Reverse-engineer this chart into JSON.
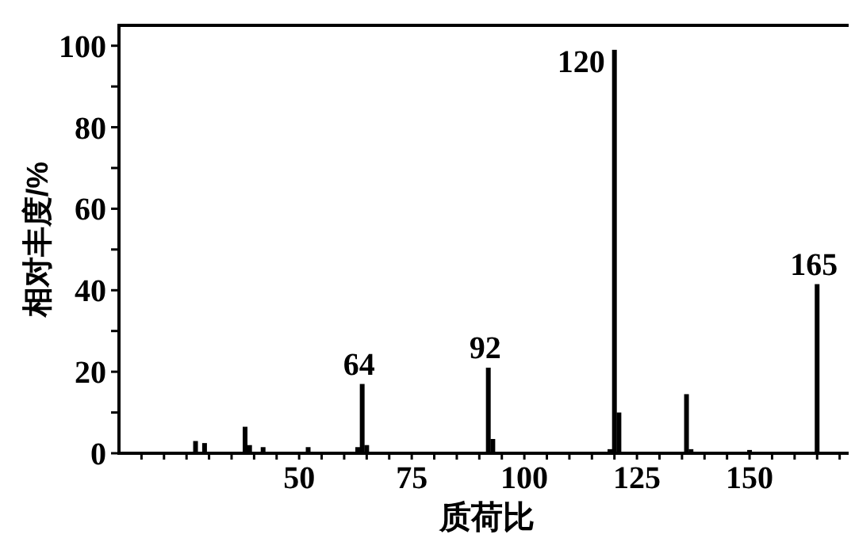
{
  "chart_data": {
    "type": "bar",
    "xlabel": "质荷比",
    "ylabel": "相对丰度/%",
    "x": [
      27,
      29,
      38,
      39,
      42,
      52,
      63,
      64,
      65,
      92,
      93,
      119,
      120,
      121,
      136,
      137,
      150,
      165
    ],
    "values": [
      3,
      2.5,
      6.5,
      2,
      1.5,
      1.5,
      1.5,
      17,
      2,
      21,
      3.5,
      1,
      99,
      10,
      14.5,
      1,
      0.8,
      41.5
    ],
    "color": "#000000",
    "xlim": [
      10,
      172
    ],
    "xticks": [
      {
        "value": 15,
        "label": null
      },
      {
        "value": 20,
        "label": null
      },
      {
        "value": 25,
        "label": null
      },
      {
        "value": 30,
        "label": null
      },
      {
        "value": 35,
        "label": null
      },
      {
        "value": 40,
        "label": null
      },
      {
        "value": 45,
        "label": null
      },
      50,
      {
        "value": 55,
        "label": null
      },
      {
        "value": 60,
        "label": null
      },
      {
        "value": 65,
        "label": null
      },
      {
        "value": 70,
        "label": null
      },
      75,
      {
        "value": 80,
        "label": null
      },
      {
        "value": 85,
        "label": null
      },
      {
        "value": 90,
        "label": null
      },
      {
        "value": 95,
        "label": null
      },
      100,
      {
        "value": 105,
        "label": null
      },
      {
        "value": 110,
        "label": null
      },
      {
        "value": 115,
        "label": null
      },
      {
        "value": 120,
        "label": null
      },
      125,
      {
        "value": 130,
        "label": null
      },
      {
        "value": 135,
        "label": null
      },
      {
        "value": 140,
        "label": null
      },
      {
        "value": 145,
        "label": null
      },
      150,
      {
        "value": 155,
        "label": null
      },
      {
        "value": 160,
        "label": null
      },
      {
        "value": 165,
        "label": null
      },
      {
        "value": 170,
        "label": null
      }
    ],
    "ylim": [
      0,
      105
    ],
    "yticks": [
      0,
      {
        "value": 10,
        "label": null
      },
      20,
      {
        "value": 30,
        "label": null
      },
      40,
      {
        "value": 50,
        "label": null
      },
      60,
      {
        "value": 70,
        "label": null
      },
      80,
      {
        "value": 90,
        "label": null
      },
      100
    ],
    "annotations": [
      {
        "text": "64",
        "x": 64,
        "y": 17
      },
      {
        "text": "92",
        "x": 92,
        "y": 21
      },
      {
        "text": "120",
        "x": 120,
        "y": 99
      },
      {
        "text": "165",
        "x": 165,
        "y": 41.5
      }
    ]
  }
}
